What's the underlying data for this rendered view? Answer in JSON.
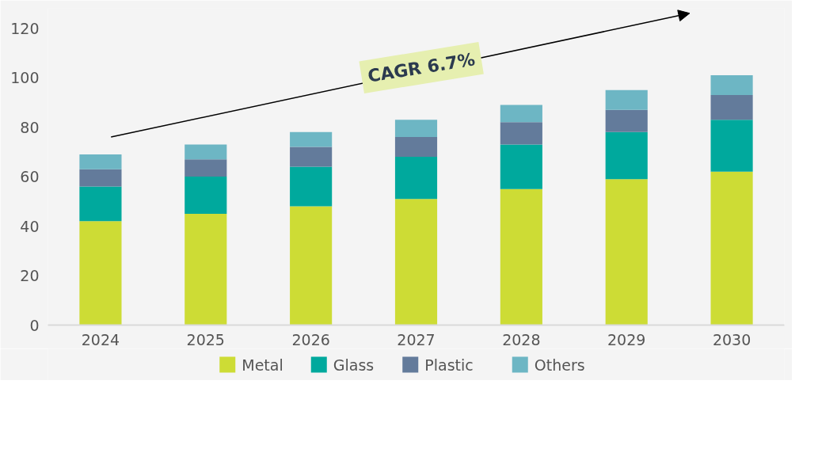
{
  "chart_data": {
    "type": "bar",
    "stacked": true,
    "categories": [
      "2024",
      "2025",
      "2026",
      "2027",
      "2028",
      "2029",
      "2030"
    ],
    "series": [
      {
        "name": "Metal",
        "color": "#cddc35",
        "values": [
          42,
          45,
          48,
          51,
          55,
          59,
          62
        ]
      },
      {
        "name": "Glass",
        "color": "#00a99d",
        "values": [
          14,
          15,
          16,
          17,
          18,
          19,
          21
        ]
      },
      {
        "name": "Plastic",
        "color": "#637b9b",
        "values": [
          7,
          7,
          8,
          8,
          9,
          9,
          10
        ]
      },
      {
        "name": "Others",
        "color": "#6db6c4",
        "values": [
          6,
          6,
          6,
          7,
          7,
          8,
          8
        ]
      }
    ],
    "ylim": [
      0,
      128
    ],
    "yticks": [
      0,
      20,
      40,
      60,
      80,
      100,
      120
    ],
    "grid": false,
    "legend": "bottom",
    "annotations": [
      "CAGR 6.7%"
    ]
  }
}
